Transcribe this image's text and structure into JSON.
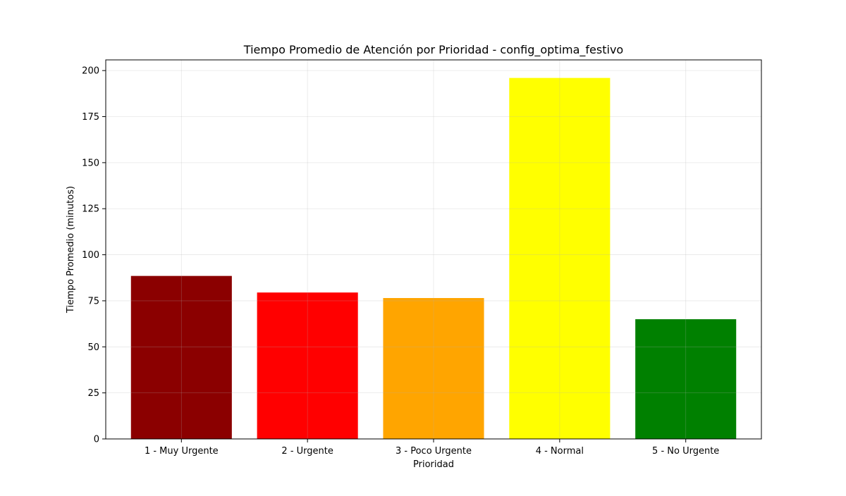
{
  "chart_data": {
    "type": "bar",
    "title": "Tiempo Promedio de Atención por Prioridad - config_optima_festivo",
    "xlabel": "Prioridad",
    "ylabel": "Tiempo Promedio (minutos)",
    "categories": [
      "1 - Muy Urgente",
      "2 - Urgente",
      "3 - Poco Urgente",
      "4 - Normal",
      "5 - No Urgente"
    ],
    "values": [
      88.5,
      79.5,
      76.5,
      196,
      65
    ],
    "colors": [
      "#8b0000",
      "#ff0000",
      "#ffa500",
      "#ffff00",
      "#008000"
    ],
    "ylim": [
      0,
      205.8
    ],
    "yticks": [
      0,
      25,
      50,
      75,
      100,
      125,
      150,
      175,
      200
    ],
    "grid": true
  }
}
